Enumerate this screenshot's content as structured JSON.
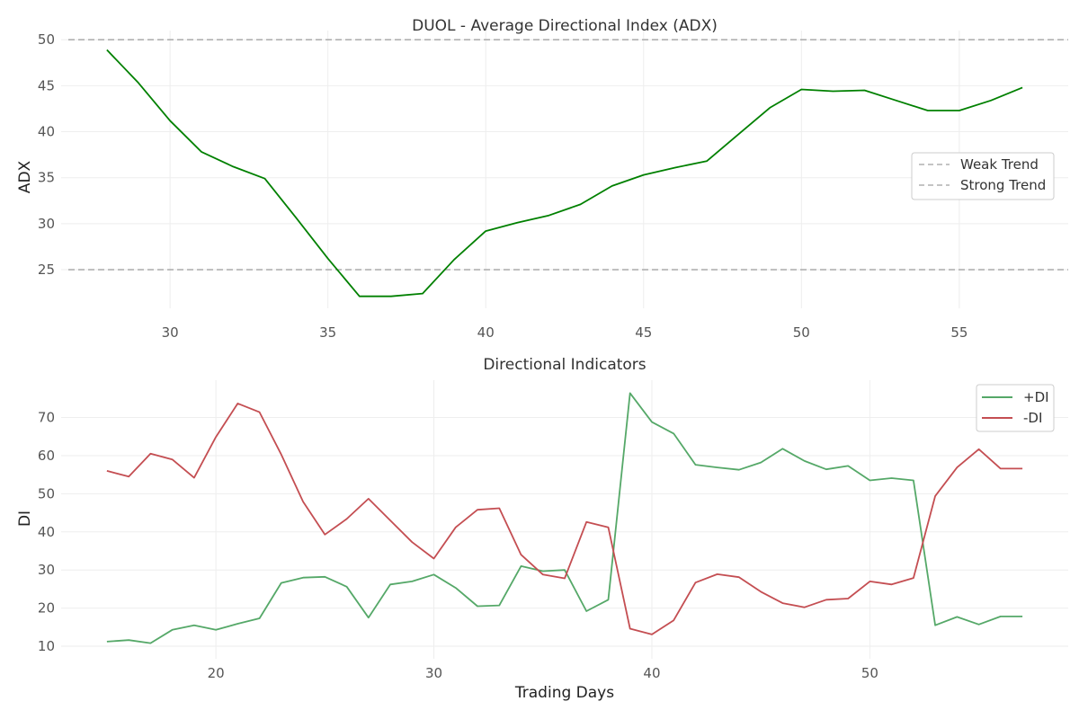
{
  "chart_data": [
    {
      "type": "line",
      "title": "DUOL - Average Directional Index (ADX)",
      "xlabel": "",
      "ylabel": "ADX",
      "xlim": [
        26.55,
        58.45
      ],
      "ylim": [
        20.8,
        51.0
      ],
      "xticks": [
        30,
        35,
        40,
        45,
        50,
        55
      ],
      "yticks": [
        25,
        30,
        35,
        40,
        45,
        50
      ],
      "grid": true,
      "legend_position": "center-right",
      "series": [
        {
          "color": "#008000",
          "x": [
            28,
            29,
            30,
            31,
            32,
            33,
            34,
            35,
            36,
            37,
            38,
            39,
            40,
            41,
            42,
            43,
            44,
            45,
            46,
            47,
            48,
            49,
            50,
            51,
            52,
            53,
            54,
            55,
            56,
            57
          ],
          "y": [
            48.9,
            45.3,
            41.2,
            37.8,
            36.2,
            34.9,
            30.6,
            26.2,
            22.1,
            22.1,
            22.4,
            26.1,
            29.2,
            30.1,
            30.9,
            32.1,
            34.1,
            35.3,
            36.1,
            36.8,
            39.7,
            42.6,
            44.6,
            44.4,
            44.5,
            43.4,
            42.3,
            42.3,
            43.4,
            44.8
          ]
        }
      ],
      "reference_lines": [
        {
          "name": "Weak Trend",
          "y": 25,
          "color": "#b0b0b0",
          "style": "dashed"
        },
        {
          "name": "Strong Trend",
          "y": 50,
          "color": "#b0b0b0",
          "style": "dashed"
        }
      ]
    },
    {
      "type": "line",
      "title": "Directional Indicators",
      "xlabel": "Trading Days",
      "ylabel": "DI",
      "xlim": [
        12.9,
        59.1
      ],
      "ylim": [
        6.7,
        79.8
      ],
      "xticks": [
        20,
        30,
        40,
        50
      ],
      "yticks": [
        10,
        20,
        30,
        40,
        50,
        60,
        70
      ],
      "grid": true,
      "legend_position": "top-right",
      "series": [
        {
          "name": "+DI",
          "color": "#55a868",
          "x": [
            15,
            16,
            17,
            18,
            19,
            20,
            21,
            22,
            23,
            24,
            25,
            26,
            27,
            28,
            29,
            30,
            31,
            32,
            33,
            34,
            35,
            36,
            37,
            38,
            39,
            40,
            41,
            42,
            43,
            44,
            45,
            46,
            47,
            48,
            49,
            50,
            51,
            52,
            53,
            54,
            55,
            56,
            57
          ],
          "y": [
            11.2,
            11.6,
            10.8,
            14.3,
            15.5,
            14.3,
            15.9,
            17.3,
            26.6,
            28.0,
            28.2,
            25.6,
            17.5,
            26.2,
            27.0,
            28.8,
            25.3,
            20.5,
            20.7,
            31.0,
            29.7,
            30.0,
            19.2,
            22.2,
            76.4,
            68.8,
            65.8,
            57.6,
            56.9,
            56.3,
            58.2,
            61.8,
            58.6,
            56.4,
            57.3,
            53.5,
            54.1,
            53.5,
            15.5,
            17.7,
            15.7,
            17.8,
            17.8
          ]
        },
        {
          "name": "-DI",
          "color": "#c44e52",
          "x": [
            15,
            16,
            17,
            18,
            19,
            20,
            21,
            22,
            23,
            24,
            25,
            26,
            27,
            28,
            29,
            30,
            31,
            32,
            33,
            34,
            35,
            36,
            37,
            38,
            39,
            40,
            41,
            42,
            43,
            44,
            45,
            46,
            47,
            48,
            49,
            50,
            51,
            52,
            53,
            54,
            55,
            56,
            57
          ],
          "y": [
            56.0,
            54.5,
            60.5,
            59.0,
            54.2,
            64.9,
            73.7,
            71.4,
            60.3,
            47.9,
            39.3,
            43.4,
            48.7,
            43.0,
            37.3,
            33.0,
            41.2,
            45.8,
            46.2,
            34.0,
            28.8,
            27.8,
            42.6,
            41.2,
            14.6,
            13.1,
            16.8,
            26.7,
            28.9,
            28.1,
            24.3,
            21.3,
            20.2,
            22.2,
            22.5,
            27.0,
            26.2,
            27.9,
            49.4,
            56.9,
            61.7,
            56.6,
            56.6
          ]
        }
      ]
    }
  ]
}
